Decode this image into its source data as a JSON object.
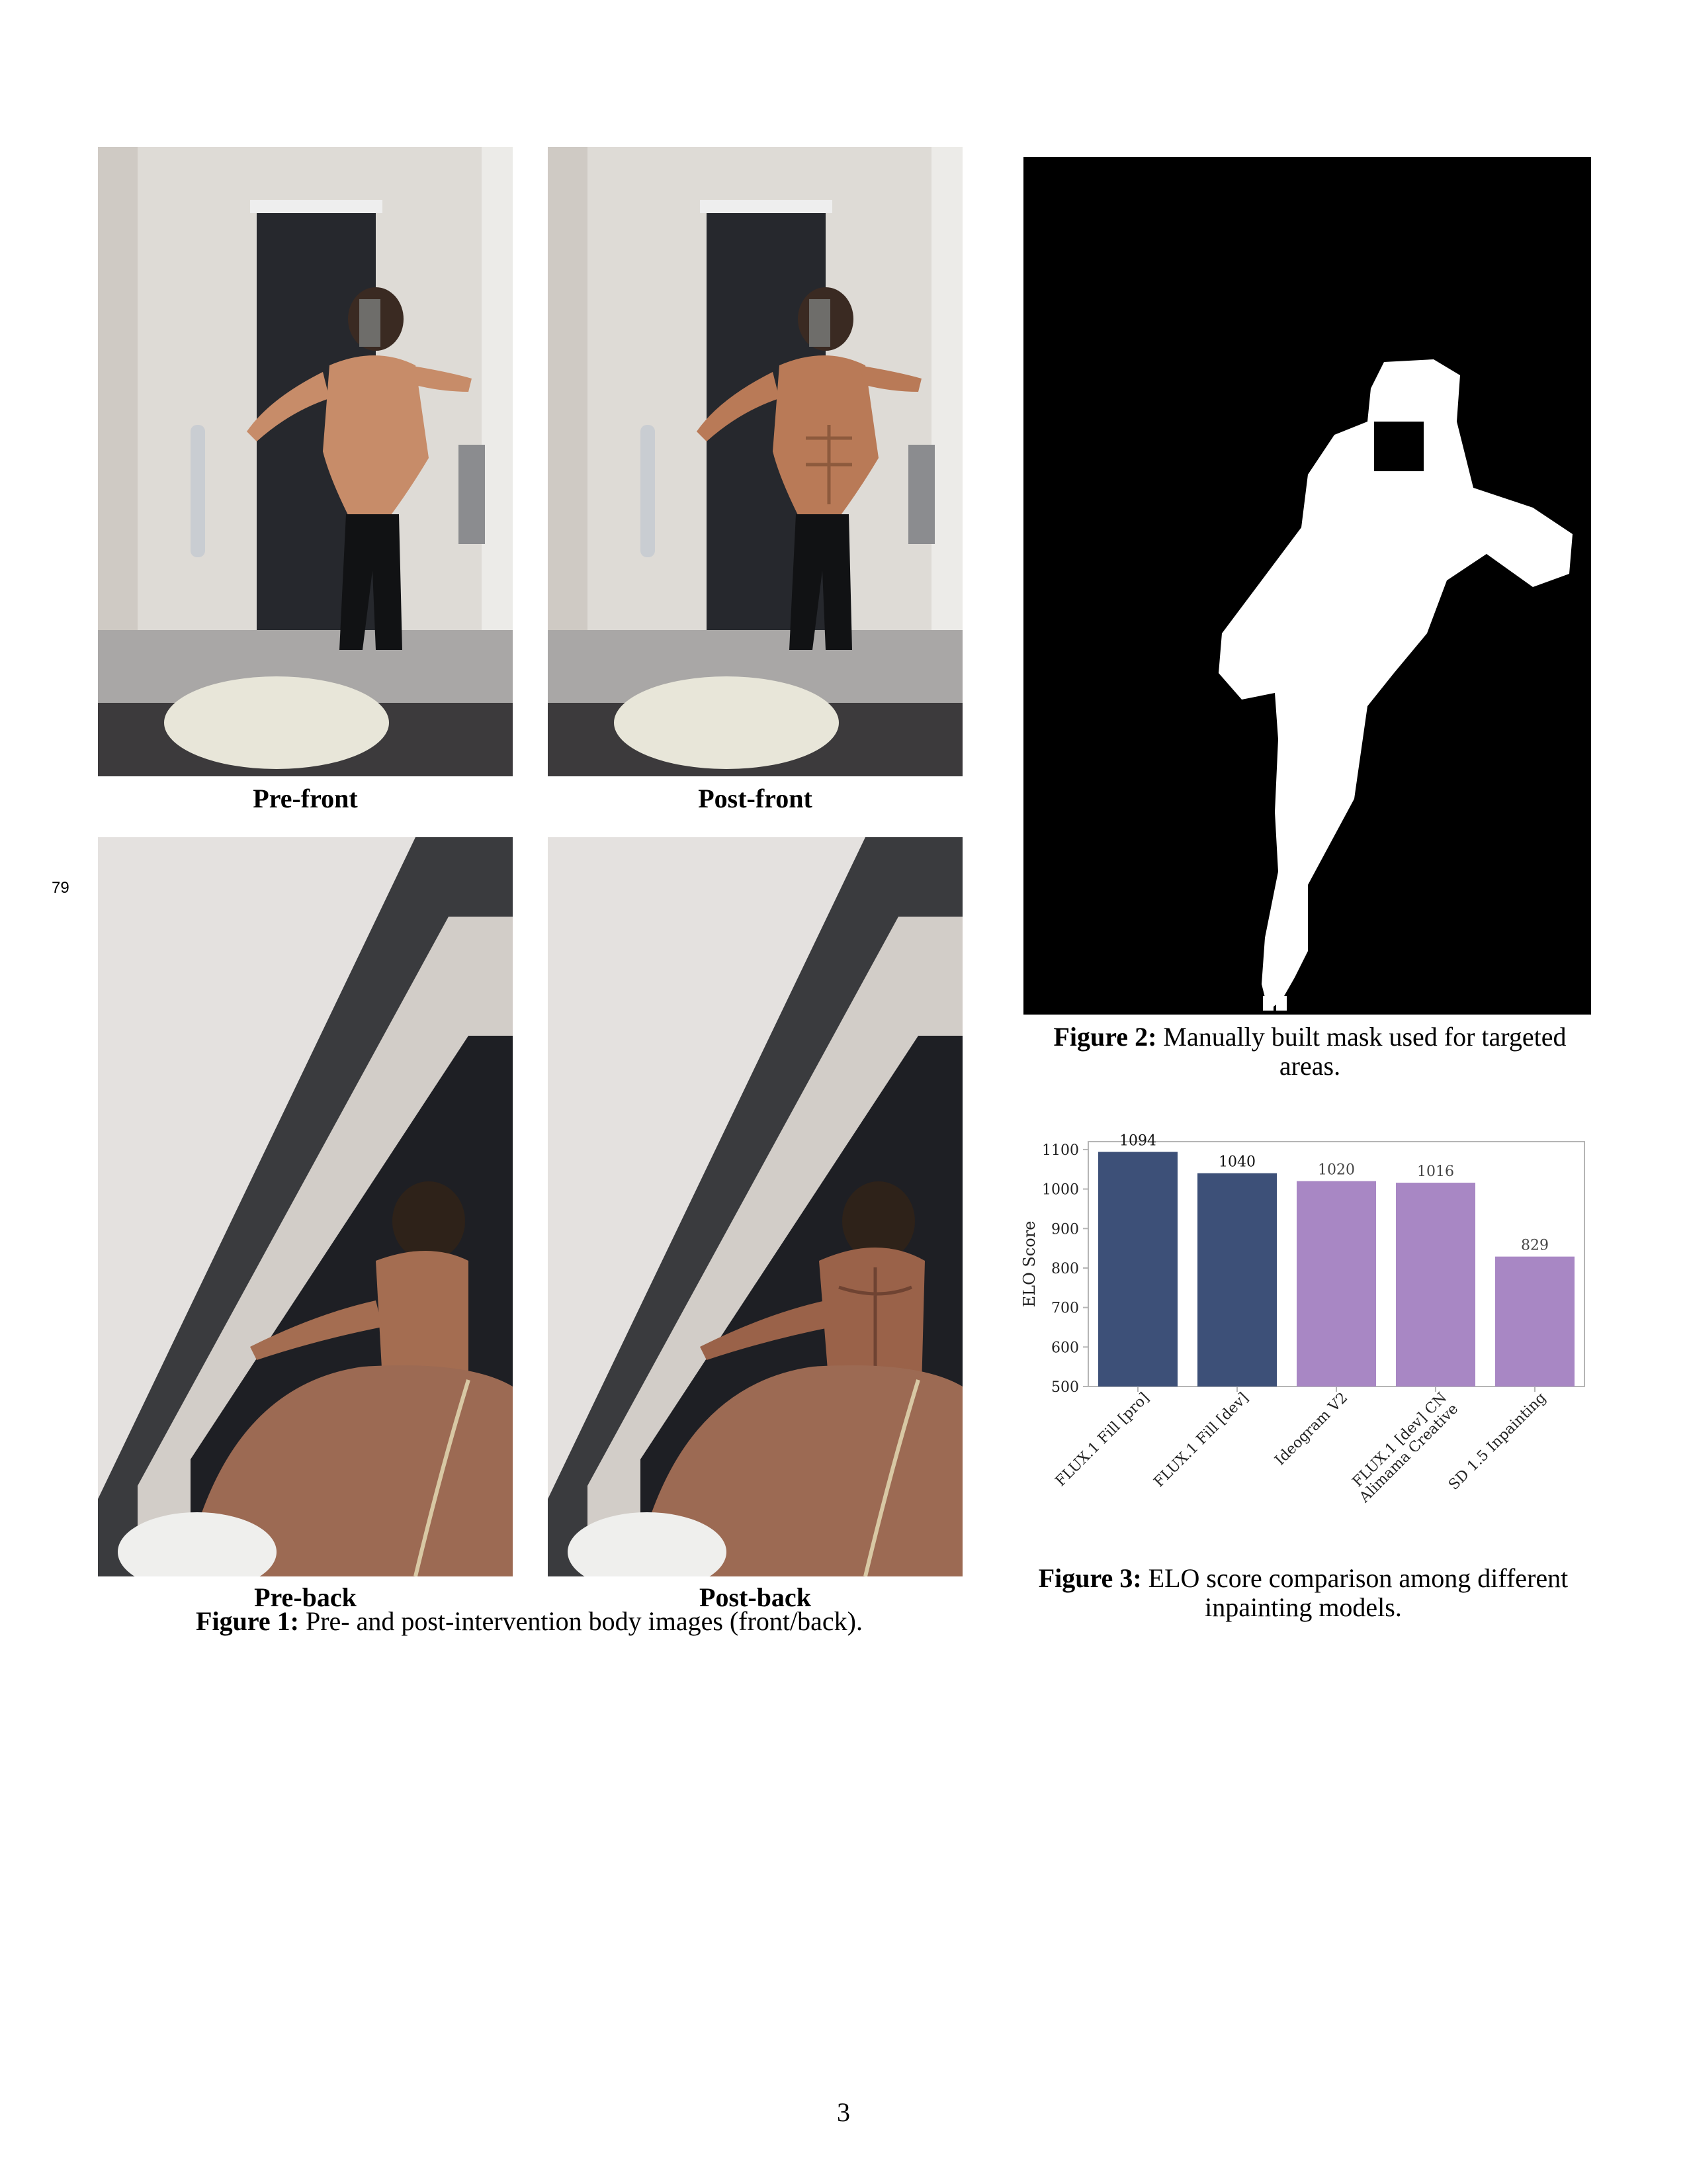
{
  "line_number": "79",
  "page_number": "3",
  "figure1": {
    "subcaptions": {
      "pre_front": "Pre-front",
      "post_front": "Post-front",
      "pre_back": "Pre-back",
      "post_back": "Post-back"
    },
    "caption_label": "Figure 1:",
    "caption_text": "Pre- and post-intervention body images (front/back)."
  },
  "figure2": {
    "caption_label": "Figure 2:",
    "caption_text": "Manually built mask used for targeted areas."
  },
  "figure3": {
    "caption_label": "Figure 3:",
    "caption_text": "ELO score comparison among different inpainting models."
  },
  "colors": {
    "flux_bar": "#3d5078",
    "other_bar": "#a887c4"
  },
  "chart_data": {
    "type": "bar",
    "ylabel": "ELO Score",
    "xlabel": "",
    "ylim": [
      500,
      1120
    ],
    "yticks": [
      500,
      600,
      700,
      800,
      900,
      1000,
      1100
    ],
    "categories": [
      "FLUX.1 Fill [pro]",
      "FLUX.1 Fill [dev]",
      "Ideogram V2",
      "FLUX.1 [dev] CN\nAlimama Creative",
      "SD 1.5 Inpainting"
    ],
    "values": [
      1094,
      1040,
      1020,
      1016,
      829
    ],
    "value_labels": [
      "1094",
      "1040",
      "1020",
      "1016",
      "829"
    ],
    "bar_colors": [
      "#3d5078",
      "#3d5078",
      "#a887c4",
      "#a887c4",
      "#a887c4"
    ],
    "grid": false,
    "legend": "none"
  }
}
